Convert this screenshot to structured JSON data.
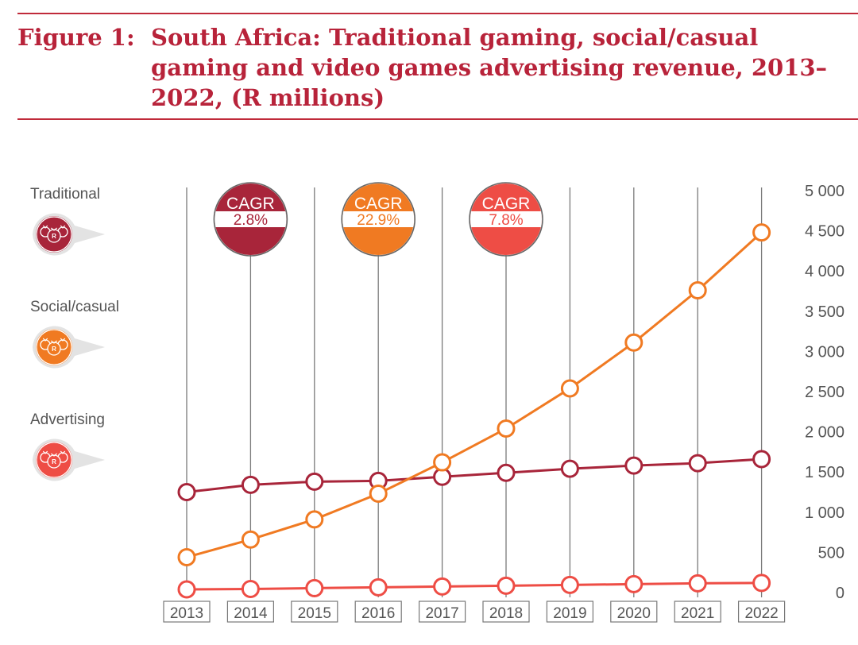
{
  "figure": {
    "number": "Figure 1:",
    "title": "South Africa: Traditional gaming, social/casual gaming and video games advertising revenue, 2013–2022, (R millions)"
  },
  "legend": [
    {
      "label": "Traditional",
      "icon": "money-bags-icon",
      "color": "#a8253a"
    },
    {
      "label": "Social/casual",
      "icon": "money-bags-icon",
      "color": "#f07a22"
    },
    {
      "label": "Advertising",
      "icon": "money-bags-icon",
      "color": "#ee4d45"
    }
  ],
  "colors": {
    "traditional": "#a8253a",
    "social": "#f07a22",
    "advertising": "#ee4d45",
    "grid": "#7a7a7a",
    "text": "#555555"
  },
  "cagr": [
    {
      "label": "CAGR",
      "value": "2.8%",
      "series": "Traditional",
      "year": "2014"
    },
    {
      "label": "CAGR",
      "value": "22.9%",
      "series": "Social/casual",
      "year": "2016"
    },
    {
      "label": "CAGR",
      "value": "7.8%",
      "series": "Advertising",
      "year": "2018"
    }
  ],
  "chart_data": {
    "type": "line",
    "x": [
      "2013",
      "2014",
      "2015",
      "2016",
      "2017",
      "2018",
      "2019",
      "2020",
      "2021",
      "2022"
    ],
    "series": [
      {
        "name": "Traditional",
        "values": [
          1250,
          1340,
          1380,
          1390,
          1440,
          1490,
          1540,
          1580,
          1610,
          1660
        ]
      },
      {
        "name": "Social/casual",
        "values": [
          440,
          660,
          910,
          1230,
          1620,
          2040,
          2540,
          3110,
          3760,
          4480
        ]
      },
      {
        "name": "Advertising",
        "values": [
          40,
          45,
          55,
          65,
          75,
          85,
          95,
          105,
          115,
          120
        ]
      }
    ],
    "y_ticks": [
      "0",
      "500",
      "1 000",
      "1 500",
      "2 000",
      "2 500",
      "3 000",
      "3 500",
      "4 000",
      "4 500",
      "5 000"
    ],
    "ylim": [
      0,
      5000
    ],
    "y_axis_position": "right",
    "grid": "vertical"
  }
}
